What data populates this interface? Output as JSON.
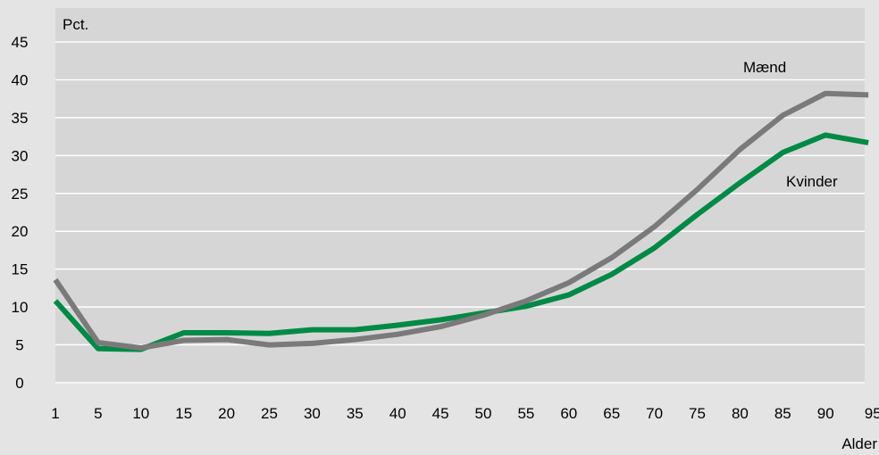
{
  "chart_data": {
    "type": "line",
    "title": "",
    "ylabel": "Pct.",
    "xlabel": "Alder",
    "ylim": [
      0,
      45
    ],
    "yticks": [
      0,
      5,
      10,
      15,
      20,
      25,
      30,
      35,
      40,
      45
    ],
    "grid": true,
    "categories": [
      "1",
      "5",
      "10",
      "15",
      "20",
      "25",
      "30",
      "35",
      "40",
      "45",
      "50",
      "55",
      "60",
      "65",
      "70",
      "75",
      "80",
      "85",
      "90",
      "95-"
    ],
    "series": [
      {
        "name": "Mænd",
        "color": "#7a7a7a",
        "values": [
          13.6,
          5.3,
          4.6,
          5.6,
          5.7,
          5.0,
          5.2,
          5.7,
          6.4,
          7.4,
          8.9,
          10.8,
          13.2,
          16.5,
          20.6,
          25.5,
          30.8,
          35.3,
          38.2,
          38.0
        ]
      },
      {
        "name": "Kvinder",
        "color": "#008a45",
        "values": [
          10.8,
          4.5,
          4.4,
          6.6,
          6.6,
          6.5,
          7.0,
          7.0,
          7.6,
          8.3,
          9.2,
          10.1,
          11.6,
          14.3,
          17.8,
          22.2,
          26.4,
          30.4,
          32.7,
          31.7
        ]
      }
    ]
  }
}
